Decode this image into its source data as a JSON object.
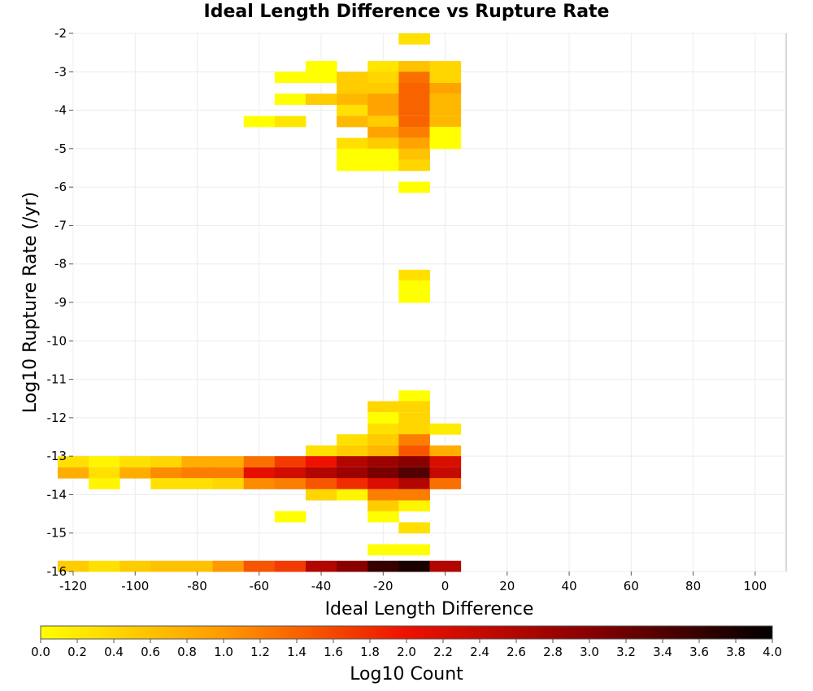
{
  "chart_data": {
    "type": "heatmap",
    "title": "Ideal Length Difference vs Rupture Rate",
    "xlabel": "Ideal Length Difference",
    "ylabel": "Log10 Rupture Rate (/yr)",
    "xlim": [
      -120,
      110
    ],
    "ylim": [
      -16,
      -2
    ],
    "x_ticks": [
      -120,
      -100,
      -80,
      -60,
      -40,
      -20,
      0,
      20,
      40,
      60,
      80,
      100
    ],
    "y_ticks": [
      -2,
      -3,
      -4,
      -5,
      -6,
      -7,
      -8,
      -9,
      -10,
      -11,
      -12,
      -13,
      -14,
      -15,
      -16
    ],
    "grid": true,
    "x_bin_width": 10,
    "y_bin_height": 0.28,
    "colorbar": {
      "label": "Log10 Count",
      "range": [
        0,
        4
      ],
      "ticks": [
        0.0,
        0.2,
        0.4,
        0.6,
        0.8,
        1.0,
        1.2,
        1.4,
        1.6,
        1.8,
        2.0,
        2.2,
        2.4,
        2.6,
        2.8,
        3.0,
        3.2,
        3.4,
        3.6,
        3.8,
        4.0
      ],
      "tick_labels": [
        "0.0",
        "0.2",
        "0.4",
        "0.6",
        "0.8",
        "1.0",
        "1.2",
        "1.4",
        "1.6",
        "1.8",
        "2.0",
        "2.2",
        "2.4",
        "2.6",
        "2.8",
        "3.0",
        "3.2",
        "3.4",
        "3.6",
        "3.8",
        "4.0"
      ],
      "position": "bottom"
    },
    "cells": [
      {
        "x": -10,
        "y": -2.14,
        "v": 0.3
      },
      {
        "x": -40,
        "y": -2.86,
        "v": 0.0
      },
      {
        "x": -20,
        "y": -2.86,
        "v": 0.25
      },
      {
        "x": -10,
        "y": -2.86,
        "v": 0.6
      },
      {
        "x": 0,
        "y": -2.86,
        "v": 0.4
      },
      {
        "x": -50,
        "y": -3.14,
        "v": 0.0
      },
      {
        "x": -40,
        "y": -3.14,
        "v": 0.0
      },
      {
        "x": -30,
        "y": -3.14,
        "v": 0.5
      },
      {
        "x": -20,
        "y": -3.14,
        "v": 0.4
      },
      {
        "x": -10,
        "y": -3.14,
        "v": 1.3
      },
      {
        "x": 0,
        "y": -3.14,
        "v": 0.4
      },
      {
        "x": -30,
        "y": -3.43,
        "v": 0.5
      },
      {
        "x": -20,
        "y": -3.43,
        "v": 0.5
      },
      {
        "x": -10,
        "y": -3.43,
        "v": 1.4
      },
      {
        "x": 0,
        "y": -3.43,
        "v": 0.9
      },
      {
        "x": -50,
        "y": -3.71,
        "v": 0.0
      },
      {
        "x": -40,
        "y": -3.71,
        "v": 0.5
      },
      {
        "x": -30,
        "y": -3.71,
        "v": 0.7
      },
      {
        "x": -20,
        "y": -3.71,
        "v": 0.9
      },
      {
        "x": -10,
        "y": -3.71,
        "v": 1.4
      },
      {
        "x": 0,
        "y": -3.71,
        "v": 0.7
      },
      {
        "x": -30,
        "y": -4.0,
        "v": 0.3
      },
      {
        "x": -20,
        "y": -4.0,
        "v": 0.9
      },
      {
        "x": -10,
        "y": -4.0,
        "v": 1.4
      },
      {
        "x": 0,
        "y": -4.0,
        "v": 0.7
      },
      {
        "x": -60,
        "y": -4.29,
        "v": 0.0
      },
      {
        "x": -50,
        "y": -4.29,
        "v": 0.25
      },
      {
        "x": -30,
        "y": -4.29,
        "v": 0.7
      },
      {
        "x": -20,
        "y": -4.29,
        "v": 0.5
      },
      {
        "x": -10,
        "y": -4.29,
        "v": 1.4
      },
      {
        "x": 0,
        "y": -4.29,
        "v": 0.7
      },
      {
        "x": -20,
        "y": -4.57,
        "v": 0.9
      },
      {
        "x": -10,
        "y": -4.57,
        "v": 1.2
      },
      {
        "x": 0,
        "y": -4.57,
        "v": 0.0
      },
      {
        "x": -30,
        "y": -4.86,
        "v": 0.3
      },
      {
        "x": -20,
        "y": -4.86,
        "v": 0.5
      },
      {
        "x": -10,
        "y": -4.86,
        "v": 0.9
      },
      {
        "x": 0,
        "y": -4.86,
        "v": 0.0
      },
      {
        "x": -30,
        "y": -5.14,
        "v": 0.0
      },
      {
        "x": -20,
        "y": -5.14,
        "v": 0.0
      },
      {
        "x": -10,
        "y": -5.14,
        "v": 0.6
      },
      {
        "x": -30,
        "y": -5.43,
        "v": 0.0
      },
      {
        "x": -20,
        "y": -5.43,
        "v": 0.0
      },
      {
        "x": -10,
        "y": -5.43,
        "v": 0.4
      },
      {
        "x": -10,
        "y": -6.0,
        "v": 0.0
      },
      {
        "x": -10,
        "y": -8.29,
        "v": 0.3
      },
      {
        "x": -10,
        "y": -8.57,
        "v": 0.0
      },
      {
        "x": -10,
        "y": -8.86,
        "v": 0.0
      },
      {
        "x": -10,
        "y": -11.43,
        "v": 0.0
      },
      {
        "x": -20,
        "y": -11.71,
        "v": 0.4
      },
      {
        "x": -10,
        "y": -11.71,
        "v": 0.4
      },
      {
        "x": -20,
        "y": -12.0,
        "v": 0.0
      },
      {
        "x": -10,
        "y": -12.0,
        "v": 0.4
      },
      {
        "x": -20,
        "y": -12.29,
        "v": 0.3
      },
      {
        "x": -10,
        "y": -12.29,
        "v": 0.4
      },
      {
        "x": 0,
        "y": -12.29,
        "v": 0.2
      },
      {
        "x": -30,
        "y": -12.57,
        "v": 0.3
      },
      {
        "x": -20,
        "y": -12.57,
        "v": 0.5
      },
      {
        "x": -10,
        "y": -12.57,
        "v": 1.2
      },
      {
        "x": -40,
        "y": -12.86,
        "v": 0.3
      },
      {
        "x": -30,
        "y": -12.86,
        "v": 0.5
      },
      {
        "x": -20,
        "y": -12.86,
        "v": 0.7
      },
      {
        "x": -10,
        "y": -12.86,
        "v": 1.5
      },
      {
        "x": 0,
        "y": -12.86,
        "v": 0.8
      },
      {
        "x": -120,
        "y": -13.14,
        "v": 0.3
      },
      {
        "x": -110,
        "y": -13.14,
        "v": 0.1
      },
      {
        "x": -100,
        "y": -13.14,
        "v": 0.3
      },
      {
        "x": -90,
        "y": -13.14,
        "v": 0.4
      },
      {
        "x": -80,
        "y": -13.14,
        "v": 0.8
      },
      {
        "x": -70,
        "y": -13.14,
        "v": 0.8
      },
      {
        "x": -60,
        "y": -13.14,
        "v": 1.3
      },
      {
        "x": -50,
        "y": -13.14,
        "v": 1.7
      },
      {
        "x": -40,
        "y": -13.14,
        "v": 2.0
      },
      {
        "x": -30,
        "y": -13.14,
        "v": 2.6
      },
      {
        "x": -20,
        "y": -13.14,
        "v": 2.8
      },
      {
        "x": -10,
        "y": -13.14,
        "v": 3.0
      },
      {
        "x": 0,
        "y": -13.14,
        "v": 2.2
      },
      {
        "x": -120,
        "y": -13.43,
        "v": 0.8
      },
      {
        "x": -110,
        "y": -13.43,
        "v": 0.3
      },
      {
        "x": -100,
        "y": -13.43,
        "v": 0.8
      },
      {
        "x": -90,
        "y": -13.43,
        "v": 1.1
      },
      {
        "x": -80,
        "y": -13.43,
        "v": 1.2
      },
      {
        "x": -70,
        "y": -13.43,
        "v": 1.2
      },
      {
        "x": -60,
        "y": -13.43,
        "v": 2.1
      },
      {
        "x": -50,
        "y": -13.43,
        "v": 2.3
      },
      {
        "x": -40,
        "y": -13.43,
        "v": 2.6
      },
      {
        "x": -30,
        "y": -13.43,
        "v": 2.8
      },
      {
        "x": -20,
        "y": -13.43,
        "v": 3.1
      },
      {
        "x": -10,
        "y": -13.43,
        "v": 3.4
      },
      {
        "x": 0,
        "y": -13.43,
        "v": 2.4
      },
      {
        "x": -110,
        "y": -13.71,
        "v": 0.1
      },
      {
        "x": -90,
        "y": -13.71,
        "v": 0.3
      },
      {
        "x": -80,
        "y": -13.71,
        "v": 0.3
      },
      {
        "x": -70,
        "y": -13.71,
        "v": 0.4
      },
      {
        "x": -60,
        "y": -13.71,
        "v": 1.1
      },
      {
        "x": -50,
        "y": -13.71,
        "v": 1.2
      },
      {
        "x": -40,
        "y": -13.71,
        "v": 1.5
      },
      {
        "x": -30,
        "y": -13.71,
        "v": 1.8
      },
      {
        "x": -20,
        "y": -13.71,
        "v": 2.2
      },
      {
        "x": -10,
        "y": -13.71,
        "v": 2.6
      },
      {
        "x": 0,
        "y": -13.71,
        "v": 1.3
      },
      {
        "x": -40,
        "y": -14.0,
        "v": 0.4
      },
      {
        "x": -30,
        "y": -14.0,
        "v": 0.1
      },
      {
        "x": -20,
        "y": -14.0,
        "v": 1.2
      },
      {
        "x": -10,
        "y": -14.0,
        "v": 1.2
      },
      {
        "x": -20,
        "y": -14.29,
        "v": 0.5
      },
      {
        "x": -10,
        "y": -14.29,
        "v": 0.1
      },
      {
        "x": -50,
        "y": -14.57,
        "v": 0.0
      },
      {
        "x": -20,
        "y": -14.57,
        "v": 0.0
      },
      {
        "x": -10,
        "y": -14.86,
        "v": 0.3
      },
      {
        "x": -20,
        "y": -15.43,
        "v": 0.0
      },
      {
        "x": -10,
        "y": -15.43,
        "v": 0.0
      },
      {
        "x": -120,
        "y": -15.86,
        "v": 0.5
      },
      {
        "x": -110,
        "y": -15.86,
        "v": 0.3
      },
      {
        "x": -100,
        "y": -15.86,
        "v": 0.5
      },
      {
        "x": -90,
        "y": -15.86,
        "v": 0.6
      },
      {
        "x": -80,
        "y": -15.86,
        "v": 0.6
      },
      {
        "x": -70,
        "y": -15.86,
        "v": 1.0
      },
      {
        "x": -60,
        "y": -15.86,
        "v": 1.5
      },
      {
        "x": -50,
        "y": -15.86,
        "v": 1.7
      },
      {
        "x": -40,
        "y": -15.86,
        "v": 2.6
      },
      {
        "x": -30,
        "y": -15.86,
        "v": 3.0
      },
      {
        "x": -20,
        "y": -15.86,
        "v": 3.6
      },
      {
        "x": -10,
        "y": -15.86,
        "v": 3.8
      },
      {
        "x": 0,
        "y": -15.86,
        "v": 2.6
      }
    ]
  }
}
